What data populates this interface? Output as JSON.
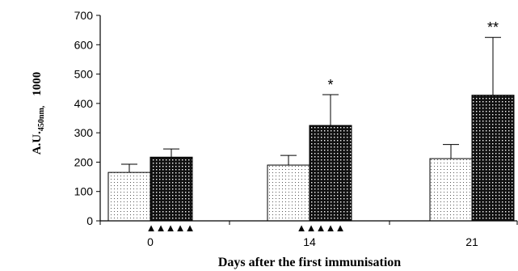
{
  "chart_data": {
    "type": "bar",
    "title": "",
    "xlabel": "Days after the first immunisation",
    "ylabel": {
      "prefix": "A.U.",
      "subscript": "450nm,",
      "suffix": "1000"
    },
    "ylim": [
      0,
      700
    ],
    "yticks": [
      "0",
      "100",
      "200",
      "300",
      "400",
      "500",
      "600",
      "700"
    ],
    "categories": [
      "0",
      "14",
      "21"
    ],
    "series": [
      {
        "name": "",
        "pattern": "light-dotted",
        "values": [
          165,
          190,
          212
        ],
        "errors": [
          28,
          33,
          48
        ]
      },
      {
        "name": "",
        "pattern": "dark-dotted",
        "values": [
          217,
          325,
          428
        ],
        "errors": [
          28,
          105,
          197
        ]
      }
    ],
    "annotations": [
      "",
      "*",
      "**"
    ],
    "markers": {
      "glyph": "▲",
      "counts": [
        5,
        5,
        0
      ]
    },
    "grid": false,
    "legend": "none"
  }
}
